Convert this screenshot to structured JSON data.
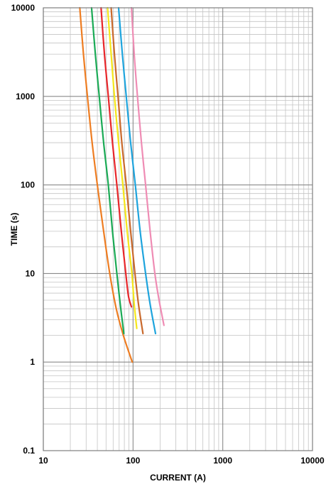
{
  "chart_data": {
    "type": "line",
    "title": "",
    "xlabel": "CURRENT (A)",
    "ylabel": "TIME (s)",
    "xscale": "log",
    "yscale": "log",
    "xlim": [
      10,
      10000
    ],
    "ylim": [
      0.1,
      10000
    ],
    "x_tick_labels": [
      "10",
      "100",
      "1000",
      "10000"
    ],
    "y_tick_labels": [
      "0.1",
      "1",
      "10",
      "100",
      "1000",
      "10000"
    ],
    "grid": true,
    "legend": "none",
    "series": [
      {
        "color": "#ee7d22",
        "points": [
          [
            25.5,
            10000
          ],
          [
            28,
            3000
          ],
          [
            31,
            1000
          ],
          [
            35,
            300
          ],
          [
            40,
            100
          ],
          [
            47,
            30
          ],
          [
            55,
            10
          ],
          [
            65,
            4
          ],
          [
            78,
            2
          ],
          [
            98,
            1
          ]
        ]
      },
      {
        "color": "#1aaa55",
        "points": [
          [
            34.5,
            10000
          ],
          [
            38,
            3000
          ],
          [
            42,
            1000
          ],
          [
            47,
            300
          ],
          [
            53,
            100
          ],
          [
            59,
            30
          ],
          [
            66,
            10
          ],
          [
            72,
            4.5
          ],
          [
            79,
            2.1
          ]
        ]
      },
      {
        "color": "#e8262a",
        "points": [
          [
            44,
            10000
          ],
          [
            48,
            3000
          ],
          [
            53,
            1000
          ],
          [
            59,
            300
          ],
          [
            66,
            100
          ],
          [
            74,
            30
          ],
          [
            83,
            10
          ],
          [
            89,
            5.5
          ],
          [
            96,
            4.2
          ]
        ]
      },
      {
        "color": "#f5e71a",
        "points": [
          [
            52,
            10000
          ],
          [
            57,
            3000
          ],
          [
            62,
            1000
          ],
          [
            69,
            300
          ],
          [
            77,
            100
          ],
          [
            86,
            30
          ],
          [
            97,
            10
          ],
          [
            103,
            4.5
          ],
          [
            110,
            2.4
          ]
        ]
      },
      {
        "color": "#c9692c",
        "points": [
          [
            57,
            10000
          ],
          [
            62,
            3000
          ],
          [
            68,
            1000
          ],
          [
            75,
            300
          ],
          [
            84,
            100
          ],
          [
            94,
            30
          ],
          [
            105,
            10
          ],
          [
            115,
            4.5
          ],
          [
            129,
            2.1
          ]
        ]
      },
      {
        "color": "#1ea4dd",
        "points": [
          [
            69,
            10000
          ],
          [
            76,
            3000
          ],
          [
            84,
            1000
          ],
          [
            94,
            300
          ],
          [
            106,
            100
          ],
          [
            120,
            30
          ],
          [
            138,
            10
          ],
          [
            155,
            4.5
          ],
          [
            178,
            2.1
          ]
        ]
      },
      {
        "color": "#ef8cb4",
        "points": [
          [
            96,
            10000
          ],
          [
            103,
            3000
          ],
          [
            112,
            1000
          ],
          [
            124,
            300
          ],
          [
            138,
            100
          ],
          [
            155,
            30
          ],
          [
            175,
            10
          ],
          [
            195,
            5
          ],
          [
            221,
            2.6
          ]
        ]
      }
    ]
  }
}
